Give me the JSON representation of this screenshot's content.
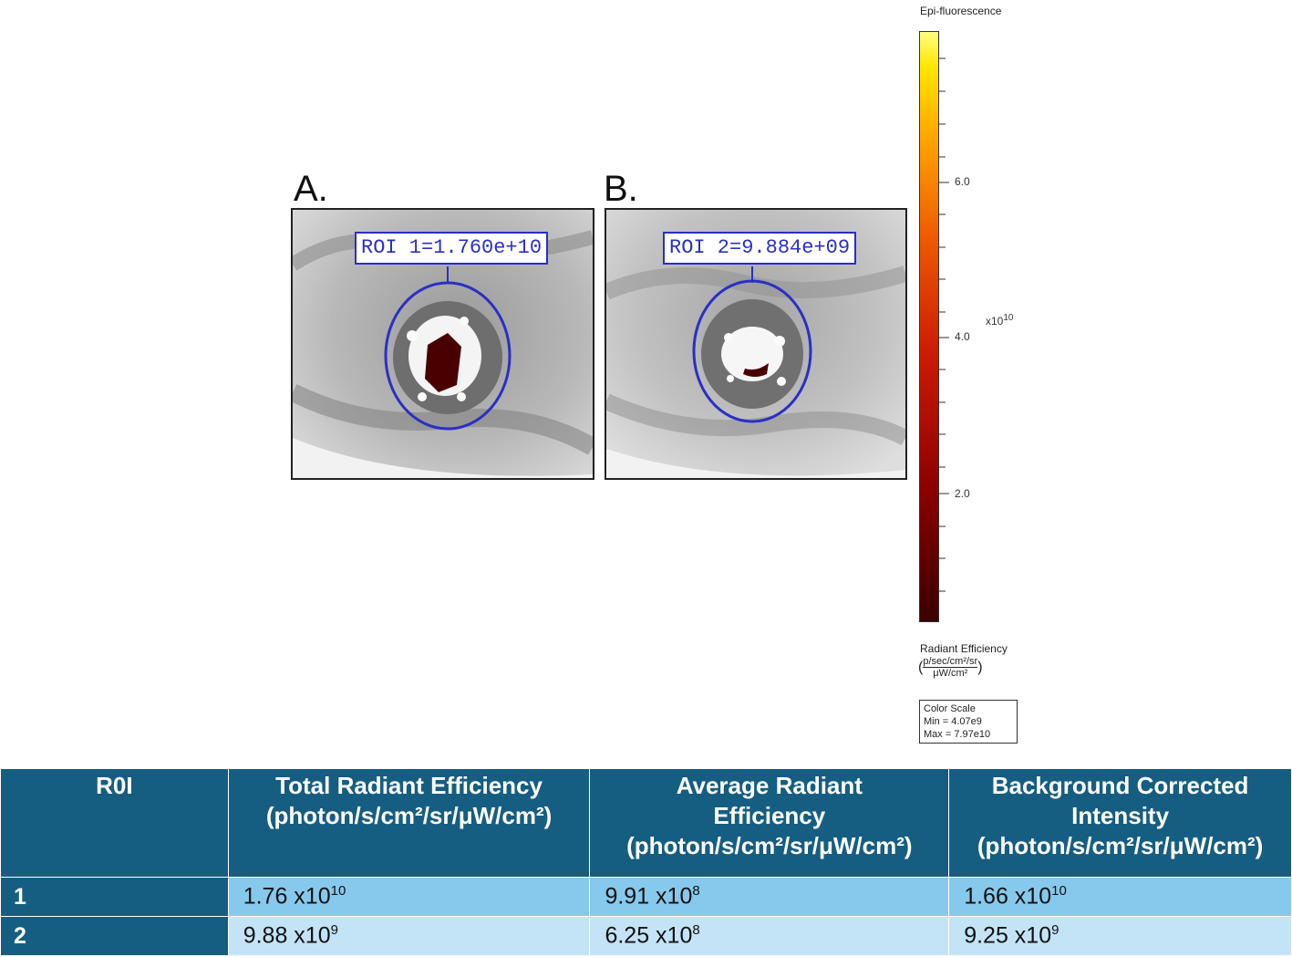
{
  "panels": [
    {
      "letter": "A.",
      "roi_label": "ROI 1=1.760e+10"
    },
    {
      "letter": "B.",
      "roi_label": "ROI 2=9.884e+09"
    }
  ],
  "colorbar": {
    "title": "Epi-fluorescence",
    "ticks": [
      "6.0",
      "4.0",
      "2.0"
    ],
    "exponent_base": "x10",
    "exponent_power": "10",
    "unit_label": "Radiant Efficiency",
    "unit_numerator": "p/sec/cm²/sr",
    "unit_denominator": "μW/cm²",
    "scale_title": "Color Scale",
    "scale_min": "Min = 4.07e9",
    "scale_max": "Max = 7.97e10",
    "gradient_colors": [
      "#3a0000",
      "#8b0000",
      "#cc1a00",
      "#ee5a00",
      "#ffa500",
      "#ffe600",
      "#ffff80"
    ]
  },
  "table": {
    "headers": [
      {
        "lines": [
          "R0I"
        ]
      },
      {
        "lines": [
          "Total Radiant Efficiency",
          "(photon/s/cm²/sr/μW/cm²)"
        ]
      },
      {
        "lines": [
          "Average Radiant",
          "Efficiency",
          "(photon/s/cm²/sr/μW/cm²)"
        ]
      },
      {
        "lines": [
          "Background Corrected",
          "Intensity",
          "(photon/s/cm²/sr/μW/cm²)"
        ]
      }
    ],
    "rows": [
      {
        "roi": "1",
        "cells": [
          {
            "base": "1.76 x10",
            "exp": "10"
          },
          {
            "base": "9.91 x10",
            "exp": "8"
          },
          {
            "base": "1.66 x10",
            "exp": "10"
          }
        ]
      },
      {
        "roi": "2",
        "cells": [
          {
            "base": "9.88 x10",
            "exp": "9"
          },
          {
            "base": "6.25 x10",
            "exp": "8"
          },
          {
            "base": "9.25 x10",
            "exp": "9"
          }
        ]
      }
    ]
  }
}
